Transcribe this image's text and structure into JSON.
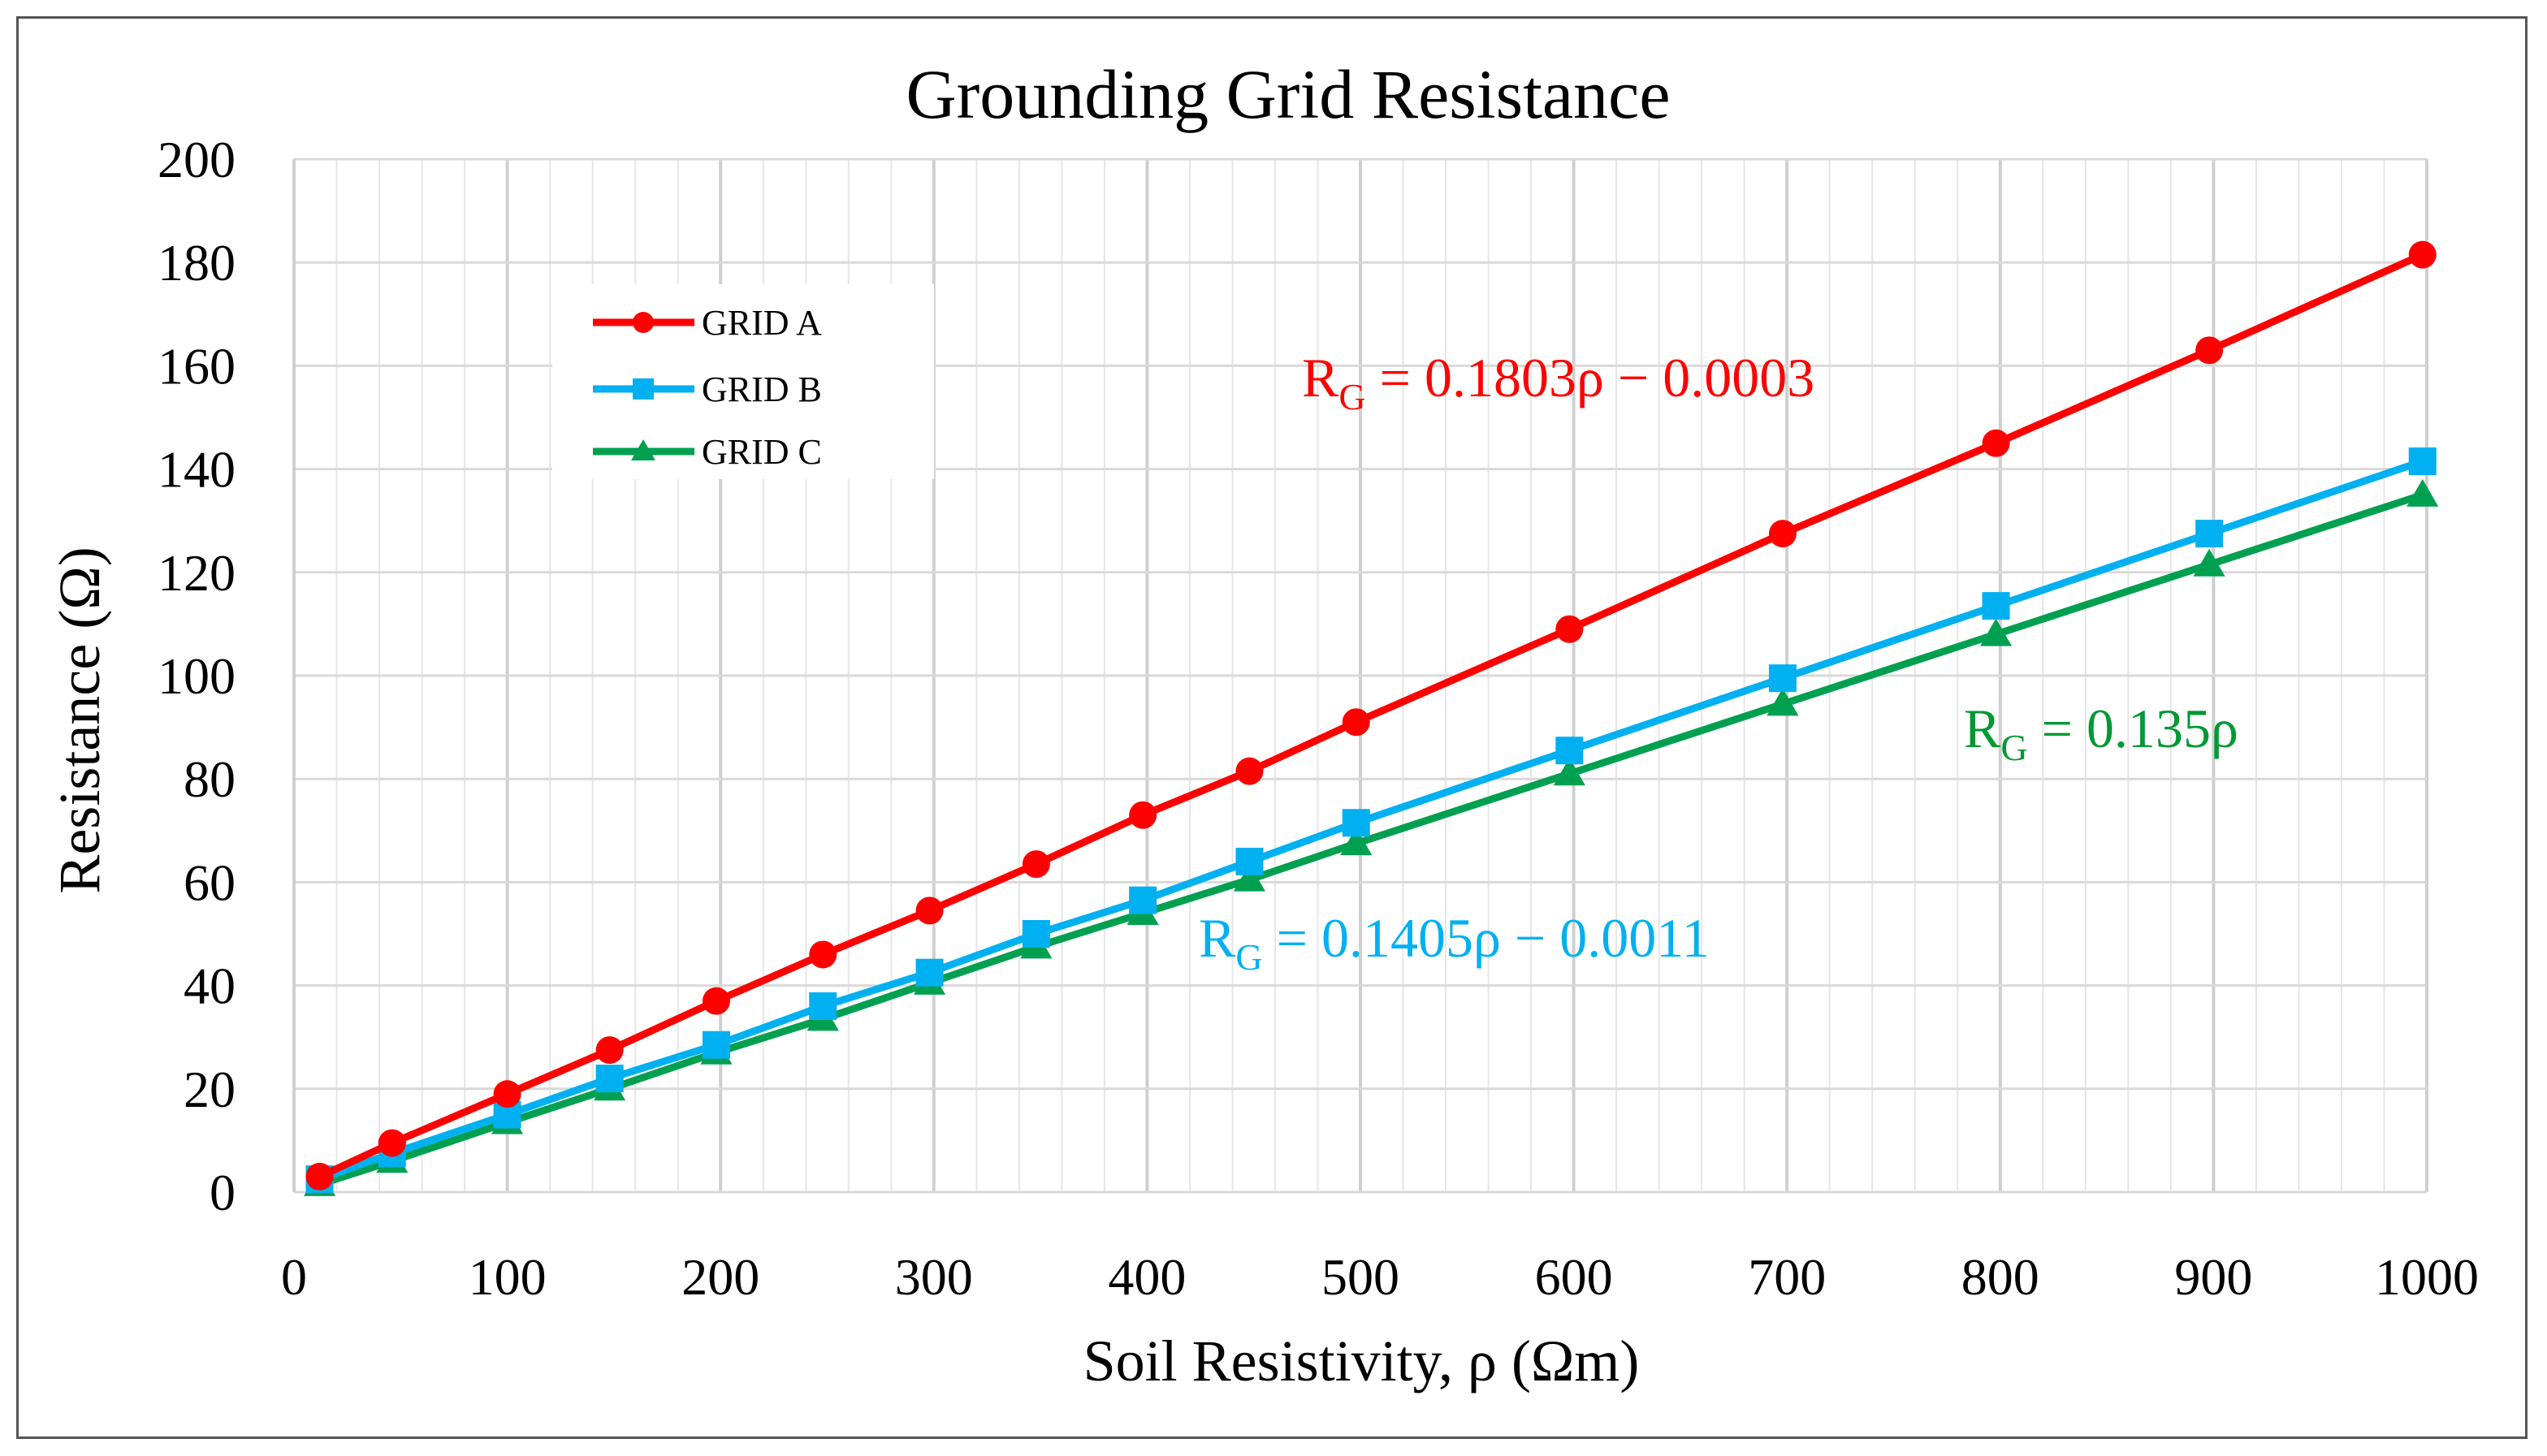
{
  "chart_data": {
    "type": "line",
    "title": "Grounding Grid Resistance",
    "xlabel": "Soil Resistivity, ρ (Ωm)",
    "ylabel": "Resistance (Ω)",
    "xlim": [
      0,
      1000
    ],
    "ylim": [
      0,
      200
    ],
    "xticks": [
      0,
      100,
      200,
      300,
      400,
      500,
      600,
      700,
      800,
      900,
      1000
    ],
    "yticks": [
      0,
      20,
      40,
      60,
      80,
      100,
      120,
      140,
      160,
      180,
      200
    ],
    "grid": true,
    "legend_position": "upper-left",
    "series": [
      {
        "name": "GRID A",
        "color": "#ff0000",
        "marker": "circle",
        "x": [
          12,
          46,
          100,
          148,
          198,
          248,
          298,
          348,
          398,
          448,
          498,
          598,
          698,
          798,
          898,
          998
        ],
        "y": [
          3,
          9.5,
          19,
          27.5,
          37,
          46,
          54.5,
          63.5,
          73,
          81.5,
          91,
          109,
          127.5,
          145,
          163,
          181.5
        ]
      },
      {
        "name": "GRID B",
        "color": "#00b0f0",
        "marker": "square",
        "x": [
          12,
          46,
          100,
          148,
          198,
          248,
          298,
          348,
          398,
          448,
          498,
          598,
          698,
          798,
          898,
          998
        ],
        "y": [
          2.5,
          7.5,
          15,
          22,
          28.5,
          36,
          42.5,
          50,
          56.5,
          64,
          71.5,
          85.5,
          99.5,
          113.5,
          127.5,
          141.5
        ]
      },
      {
        "name": "GRID C",
        "color": "#00a050",
        "marker": "triangle",
        "x": [
          12,
          46,
          100,
          148,
          198,
          248,
          298,
          348,
          398,
          448,
          498,
          598,
          698,
          798,
          898,
          998
        ],
        "y": [
          1.5,
          6,
          13.5,
          20,
          27,
          33.5,
          40.5,
          47.5,
          54,
          60.5,
          67.5,
          81,
          94.5,
          108,
          121.5,
          135
        ]
      }
    ],
    "annotations": [
      {
        "label": "R",
        "sub": "G",
        "rest": " = 0.1803ρ −  0.0003",
        "color": "#ff0000"
      },
      {
        "label": "R",
        "sub": "G",
        "rest": " = 0.1405ρ −  0.0011",
        "color": "#00b0f0"
      },
      {
        "label": "R",
        "sub": "G",
        "rest": " = 0.135ρ",
        "color": "#009933"
      }
    ]
  }
}
